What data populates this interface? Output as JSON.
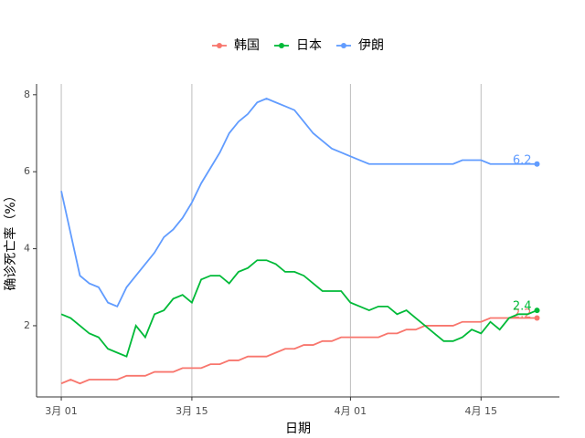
{
  "chart_data": {
    "type": "line",
    "x_label": "日期",
    "y_label": "确诊死亡率（%）",
    "x": [
      "3月 01",
      "3月 02",
      "3月 03",
      "3月 04",
      "3月 05",
      "3月 06",
      "3月 07",
      "3月 08",
      "3月 09",
      "3月 10",
      "3月 11",
      "3月 12",
      "3月 13",
      "3月 14",
      "3月 15",
      "3月 16",
      "3月 17",
      "3月 18",
      "3月 19",
      "3月 20",
      "3月 21",
      "3月 22",
      "3月 23",
      "3月 24",
      "3月 25",
      "3月 26",
      "3月 27",
      "3月 28",
      "3月 29",
      "3月 30",
      "3月 31",
      "4月 01",
      "4月 02",
      "4月 03",
      "4月 04",
      "4月 05",
      "4月 06",
      "4月 07",
      "4月 08",
      "4月 09",
      "4月 10",
      "4月 11",
      "4月 12",
      "4月 13",
      "4月 14",
      "4月 15",
      "4月 16",
      "4月 17",
      "4月 18",
      "4月 19",
      "4月 20",
      "4月 21"
    ],
    "xticks": [
      "3月 01",
      "3月 15",
      "4月 01",
      "4月 15"
    ],
    "ylim": [
      0.15,
      8.28
    ],
    "yticks": [
      2,
      4,
      6,
      8
    ],
    "grid": "x",
    "legend": "top",
    "series": [
      {
        "name": "韩国",
        "color": "#F8766D",
        "values": [
          0.5,
          0.6,
          0.5,
          0.6,
          0.6,
          0.6,
          0.6,
          0.7,
          0.7,
          0.7,
          0.8,
          0.8,
          0.8,
          0.9,
          0.9,
          0.9,
          1.0,
          1.0,
          1.1,
          1.1,
          1.2,
          1.2,
          1.2,
          1.3,
          1.4,
          1.4,
          1.5,
          1.5,
          1.6,
          1.6,
          1.7,
          1.7,
          1.7,
          1.7,
          1.7,
          1.8,
          1.8,
          1.9,
          1.9,
          2.0,
          2.0,
          2.0,
          2.0,
          2.1,
          2.1,
          2.1,
          2.2,
          2.2,
          2.2,
          2.2,
          2.2,
          2.2
        ]
      },
      {
        "name": "日本",
        "color": "#00BA38",
        "values": [
          2.3,
          2.2,
          2.0,
          1.8,
          1.7,
          1.4,
          1.3,
          1.2,
          2.0,
          1.7,
          2.3,
          2.4,
          2.7,
          2.8,
          2.6,
          3.2,
          3.3,
          3.3,
          3.1,
          3.4,
          3.5,
          3.7,
          3.7,
          3.6,
          3.4,
          3.4,
          3.3,
          3.1,
          2.9,
          2.9,
          2.9,
          2.6,
          2.5,
          2.4,
          2.5,
          2.5,
          2.3,
          2.4,
          2.2,
          2.0,
          1.8,
          1.6,
          1.6,
          1.7,
          1.9,
          1.8,
          2.1,
          1.9,
          2.2,
          2.3,
          2.3,
          2.4
        ]
      },
      {
        "name": "伊朗",
        "color": "#619CFF",
        "values": [
          5.5,
          4.4,
          3.3,
          3.1,
          3.0,
          2.6,
          2.5,
          3.0,
          3.3,
          3.6,
          3.9,
          4.3,
          4.5,
          4.8,
          5.2,
          5.7,
          6.1,
          6.5,
          7.0,
          7.3,
          7.5,
          7.8,
          7.9,
          7.8,
          7.7,
          7.6,
          7.3,
          7.0,
          6.8,
          6.6,
          6.5,
          6.4,
          6.3,
          6.2,
          6.2,
          6.2,
          6.2,
          6.2,
          6.2,
          6.2,
          6.2,
          6.2,
          6.2,
          6.3,
          6.3,
          6.3,
          6.2,
          6.2,
          6.2,
          6.2,
          6.2,
          6.2
        ]
      }
    ]
  }
}
